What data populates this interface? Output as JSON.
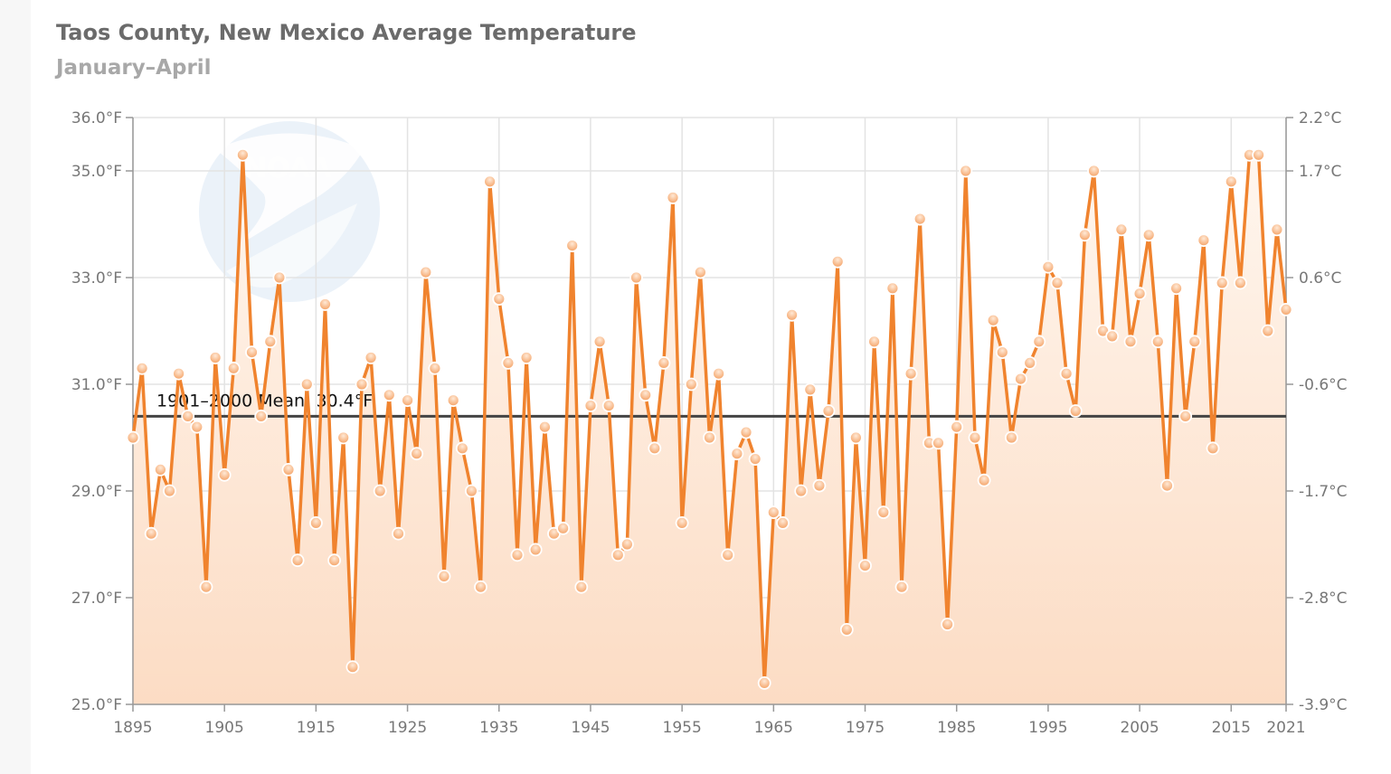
{
  "title": "Taos County, New Mexico Average Temperature",
  "subtitle": "January–April",
  "colors": {
    "line": "#f0832e",
    "mean": "#444444",
    "grid": "#e3e3e3",
    "fill_top": "#fff4ea",
    "fill_bottom": "#fcdcc3"
  },
  "logo_icon": "noaa-logo-icon",
  "chart_data": {
    "type": "line",
    "title": "Taos County, New Mexico Average Temperature",
    "subtitle": "January–April",
    "x": [
      1895,
      1896,
      1897,
      1898,
      1899,
      1900,
      1901,
      1902,
      1903,
      1904,
      1905,
      1906,
      1907,
      1908,
      1909,
      1910,
      1911,
      1912,
      1913,
      1914,
      1915,
      1916,
      1917,
      1918,
      1919,
      1920,
      1921,
      1922,
      1923,
      1924,
      1925,
      1926,
      1927,
      1928,
      1929,
      1930,
      1931,
      1932,
      1933,
      1934,
      1935,
      1936,
      1937,
      1938,
      1939,
      1940,
      1941,
      1942,
      1943,
      1944,
      1945,
      1946,
      1947,
      1948,
      1949,
      1950,
      1951,
      1952,
      1953,
      1954,
      1955,
      1956,
      1957,
      1958,
      1959,
      1960,
      1961,
      1962,
      1963,
      1964,
      1965,
      1966,
      1967,
      1968,
      1969,
      1970,
      1971,
      1972,
      1973,
      1974,
      1975,
      1976,
      1977,
      1978,
      1979,
      1980,
      1981,
      1982,
      1983,
      1984,
      1985,
      1986,
      1987,
      1988,
      1989,
      1990,
      1991,
      1992,
      1993,
      1994,
      1995,
      1996,
      1997,
      1998,
      1999,
      2000,
      2001,
      2002,
      2003,
      2004,
      2005,
      2006,
      2007,
      2008,
      2009,
      2010,
      2011,
      2012,
      2013,
      2014,
      2015,
      2016,
      2017,
      2018,
      2019,
      2020,
      2021
    ],
    "series": [
      {
        "values": [
          30.0,
          31.3,
          28.2,
          29.4,
          29.0,
          31.2,
          30.4,
          30.2,
          27.2,
          31.5,
          29.3,
          31.3,
          35.3,
          31.6,
          30.4,
          31.8,
          33.0,
          29.4,
          27.7,
          31.0,
          28.4,
          32.5,
          27.7,
          30.0,
          25.7,
          31.0,
          31.5,
          29.0,
          30.8,
          28.2,
          30.7,
          29.7,
          33.1,
          31.3,
          27.4,
          30.7,
          29.8,
          29.0,
          27.2,
          34.8,
          32.6,
          31.4,
          27.8,
          31.5,
          27.9,
          30.2,
          28.2,
          28.3,
          33.6,
          27.2,
          30.6,
          31.8,
          30.6,
          27.8,
          28.0,
          33.0,
          30.8,
          29.8,
          31.4,
          34.5,
          28.4,
          31.0,
          33.1,
          30.0,
          31.2,
          27.8,
          29.7,
          30.1,
          29.6,
          25.4,
          28.6,
          28.4,
          32.3,
          29.0,
          30.9,
          29.1,
          30.5,
          33.3,
          26.4,
          30.0,
          27.6,
          31.8,
          28.6,
          32.8,
          27.2,
          31.2,
          34.1,
          29.9,
          29.9,
          26.5,
          30.2,
          35.0,
          30.0,
          29.2,
          32.2,
          31.6,
          30.0,
          31.1,
          31.4,
          31.8,
          33.2,
          32.9,
          31.2,
          30.5,
          33.8,
          35.0,
          32.0,
          31.9,
          33.9,
          31.8,
          32.7,
          33.8,
          31.8,
          29.1,
          32.8,
          30.4,
          31.8,
          33.7,
          29.8,
          32.9,
          34.8,
          32.9,
          35.3,
          35.3,
          32.0,
          33.9,
          32.4
        ]
      }
    ],
    "mean": {
      "value": 30.4,
      "label": "1901–2000 Mean: 30.4°F"
    },
    "xlim": [
      1895,
      2021
    ],
    "ylim": [
      25.0,
      36.0
    ],
    "x_ticks": [
      1895,
      1905,
      1915,
      1925,
      1935,
      1945,
      1955,
      1965,
      1975,
      1985,
      1995,
      2005,
      2015,
      2021
    ],
    "y_ticks_left": [
      {
        "value": 25.0,
        "label": "25.0°F"
      },
      {
        "value": 27.0,
        "label": "27.0°F"
      },
      {
        "value": 29.0,
        "label": "29.0°F"
      },
      {
        "value": 31.0,
        "label": "31.0°F"
      },
      {
        "value": 33.0,
        "label": "33.0°F"
      },
      {
        "value": 35.0,
        "label": "35.0°F"
      },
      {
        "value": 36.0,
        "label": "36.0°F"
      }
    ],
    "y_ticks_right": [
      {
        "value": 25.0,
        "label": "-3.9°C"
      },
      {
        "value": 27.0,
        "label": "-2.8°C"
      },
      {
        "value": 29.0,
        "label": "-1.7°C"
      },
      {
        "value": 31.0,
        "label": "-0.6°C"
      },
      {
        "value": 33.0,
        "label": "0.6°C"
      },
      {
        "value": 35.0,
        "label": "1.7°C"
      },
      {
        "value": 36.0,
        "label": "2.2°C"
      }
    ],
    "grid": true,
    "legend": "none"
  }
}
